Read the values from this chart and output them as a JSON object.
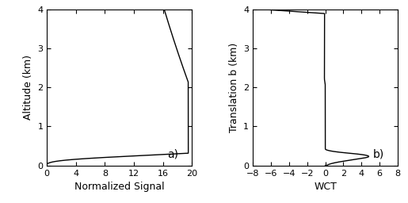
{
  "panel_a": {
    "xlabel": "Normalized Signal",
    "ylabel": "Altitude (km)",
    "xlim": [
      0,
      20
    ],
    "ylim": [
      0,
      4
    ],
    "xticks": [
      0,
      4,
      8,
      12,
      16,
      20
    ],
    "yticks": [
      0,
      1,
      2,
      3,
      4
    ],
    "label": "a)"
  },
  "panel_b": {
    "xlabel": "WCT",
    "ylabel": "Translation b (km)",
    "xlim": [
      -8,
      8
    ],
    "ylim": [
      0,
      4
    ],
    "xticks": [
      -8,
      -6,
      -4,
      -2,
      0,
      2,
      4,
      6,
      8
    ],
    "yticks": [
      0,
      1,
      2,
      3,
      4
    ],
    "label": "b)"
  },
  "line_color": "#000000",
  "line_width": 1.0,
  "background_color": "#ffffff",
  "font_size": 9,
  "tick_font_size": 8
}
